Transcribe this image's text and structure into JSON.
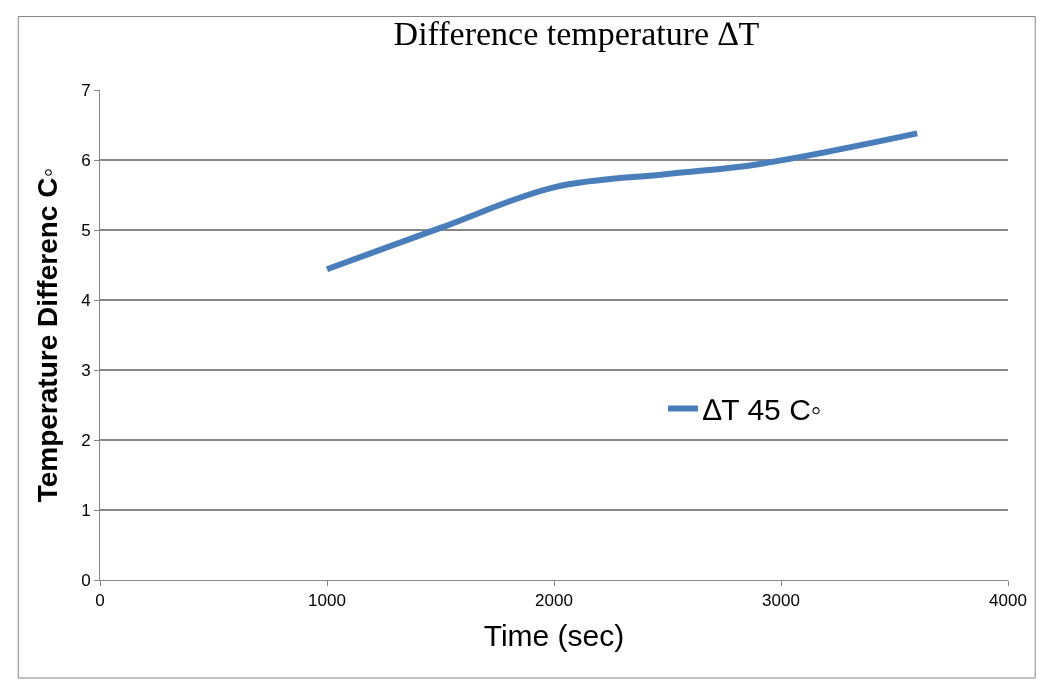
{
  "chart_data": {
    "type": "line",
    "title": "Difference temperature ∆T",
    "xlabel": "Time (sec)",
    "ylabel": "Temperature Differenc C◦",
    "x": [
      1000,
      1500,
      2000,
      2500,
      2900,
      3600
    ],
    "series": [
      {
        "name": "∆T 45 C◦",
        "color": "#4a7ebb",
        "values": [
          4.44,
          5.03,
          5.61,
          5.8,
          5.94,
          6.38
        ]
      }
    ],
    "xlim": [
      0,
      4000
    ],
    "xticks": [
      0,
      1000,
      2000,
      3000,
      4000
    ],
    "ylim": [
      0,
      7
    ],
    "yticks": [
      0,
      1,
      2,
      3,
      4,
      5,
      6,
      7
    ],
    "grid": "y",
    "legend": "right",
    "marker": "none",
    "line_style": "solid"
  }
}
